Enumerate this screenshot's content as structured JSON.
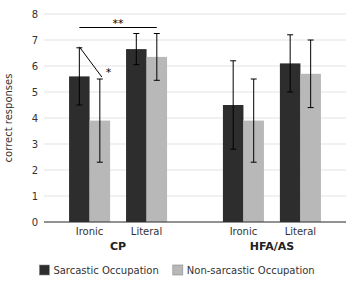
{
  "chart_data": {
    "type": "bar",
    "categories": [
      "Ironic",
      "Literal",
      "Ironic",
      "Literal"
    ],
    "groups": [
      "CP",
      "HFA/AS"
    ],
    "series": [
      {
        "name": "Sarcastic Occupation",
        "color": "#2d2d2d",
        "values": [
          5.6,
          6.65,
          4.5,
          6.1
        ],
        "errors": [
          1.1,
          0.6,
          1.7,
          1.1
        ]
      },
      {
        "name": "Non-sarcastic Occupation",
        "color": "#b8b8b8",
        "values": [
          3.9,
          6.35,
          3.9,
          5.7
        ],
        "errors": [
          1.6,
          0.9,
          1.6,
          1.3
        ]
      }
    ],
    "ylabel": "correct responses",
    "ylim": [
      0,
      8
    ],
    "yticks": [
      0,
      1,
      2,
      3,
      4,
      5,
      6,
      7,
      8
    ],
    "grid": true,
    "legend": "bottom",
    "annotations": [
      {
        "text": "*"
      },
      {
        "text": "**"
      }
    ]
  }
}
